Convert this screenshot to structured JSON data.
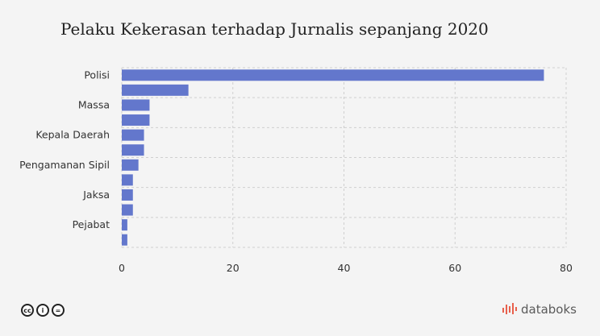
{
  "chart_data": {
    "type": "bar",
    "orientation": "horizontal",
    "title": "Pelaku Kekerasan terhadap Jurnalis sepanjang 2020",
    "tick_labels_y": [
      "Polisi",
      "",
      "Massa",
      "",
      "Kepala Daerah",
      "",
      "Pengamanan Sipil",
      "",
      "Jaksa",
      "",
      "Pejabat",
      ""
    ],
    "values": [
      76,
      12,
      5,
      5,
      4,
      4,
      3,
      2,
      2,
      2,
      1,
      1
    ],
    "xlim": [
      0,
      80
    ],
    "xticks": [
      0,
      20,
      40,
      60,
      80
    ],
    "grid": true,
    "bar_color": "#6377cc"
  },
  "footer": {
    "license_icons": [
      "cc-icon",
      "by-icon",
      "nd-icon"
    ],
    "cc_glyphs": [
      "cc",
      "i",
      "="
    ],
    "brand": "databoks",
    "brand_color": "#e8604c"
  }
}
